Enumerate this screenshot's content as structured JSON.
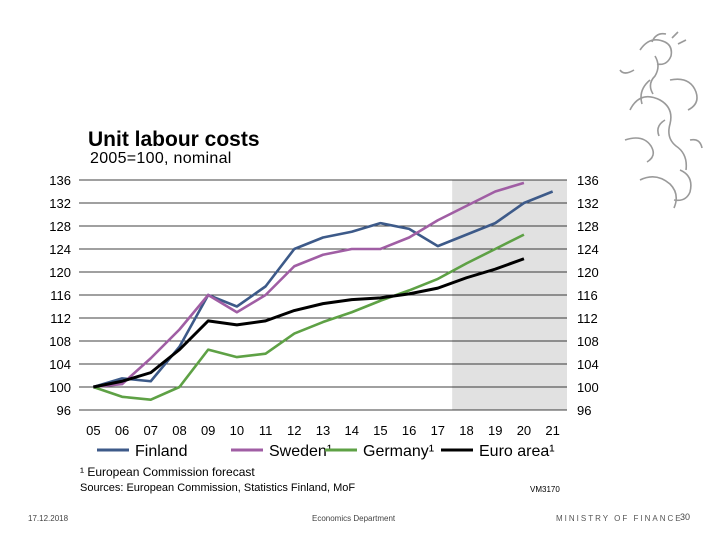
{
  "title": "Unit labour costs",
  "subtitle": "2005=100, nominal",
  "footnote": "¹ European Commission forecast",
  "sources": "Sources: European Commission, Statistics Finland, MoF",
  "chart_code": "VM3170",
  "footer": {
    "date": "17.12.2018",
    "department": "Economics Department",
    "ministry": "MINISTRY OF FINANCE",
    "page": "30"
  },
  "colors": {
    "forecast_shade": "#e1e1e1",
    "gridline": "#000000"
  },
  "chart_data": {
    "type": "line",
    "title": "Unit labour costs",
    "subtitle": "2005=100, nominal",
    "categories": [
      "05",
      "06",
      "07",
      "08",
      "09",
      "10",
      "11",
      "12",
      "13",
      "14",
      "15",
      "16",
      "17",
      "18",
      "19",
      "20",
      "21"
    ],
    "ylim": [
      96,
      136
    ],
    "yticks": [
      96,
      100,
      104,
      108,
      112,
      116,
      120,
      124,
      128,
      132,
      136
    ],
    "forecast_start": "18",
    "series": [
      {
        "name": "Finland",
        "color": "#3d5a89",
        "values": [
          100,
          101.5,
          101,
          107,
          116,
          114,
          117.5,
          124,
          126,
          127,
          128.5,
          127.5,
          124.5,
          126.5,
          128.5,
          132,
          134
        ]
      },
      {
        "name": "Sweden¹",
        "color": "#a05ea4",
        "values": [
          100,
          100.5,
          105,
          110,
          116,
          113,
          116,
          121,
          123,
          124,
          124,
          126,
          129,
          131.5,
          134,
          135.5,
          null
        ]
      },
      {
        "name": "Germany¹",
        "color": "#5ea145",
        "values": [
          100,
          98.3,
          97.8,
          100,
          106.5,
          105.2,
          105.8,
          109.3,
          111.3,
          113,
          115,
          116.8,
          118.8,
          121.5,
          124,
          126.5,
          null
        ]
      },
      {
        "name": "Euro area¹",
        "color": "#000000",
        "values": [
          100,
          101,
          102.5,
          106.5,
          111.5,
          110.8,
          111.5,
          113.3,
          114.5,
          115.2,
          115.5,
          116.2,
          117.2,
          119,
          120.5,
          122.3,
          null
        ]
      }
    ]
  }
}
